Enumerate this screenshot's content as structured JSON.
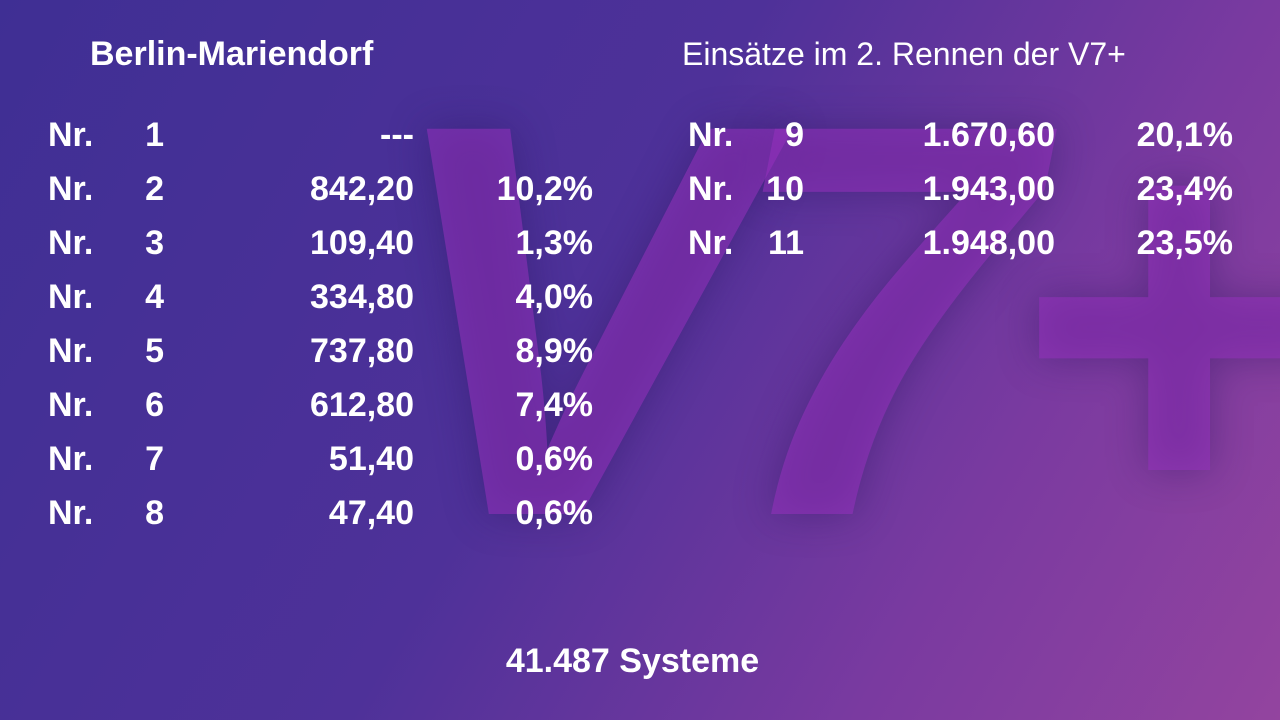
{
  "header": {
    "venue": "Berlin-Mariendorf",
    "title": "Einsätze im 2. Rennen der V7+"
  },
  "logo": "V7+",
  "left_rows": [
    {
      "prefix": "Nr.",
      "number": "1",
      "amount": "---"
    },
    {
      "prefix": "Nr.",
      "number": "2",
      "amount": "842,20",
      "share": "10,2%"
    },
    {
      "prefix": "Nr.",
      "number": "3",
      "amount": "109,40",
      "share": "1,3%"
    },
    {
      "prefix": "Nr.",
      "number": "4",
      "amount": "334,80",
      "share": "4,0%"
    },
    {
      "prefix": "Nr.",
      "number": "5",
      "amount": "737,80",
      "share": "8,9%"
    },
    {
      "prefix": "Nr.",
      "number": "6",
      "amount": "612,80",
      "share": "7,4%"
    },
    {
      "prefix": "Nr.",
      "number": "7",
      "amount": "51,40",
      "share": "0,6%"
    },
    {
      "prefix": "Nr.",
      "number": "8",
      "amount": "47,40",
      "share": "0,6%"
    }
  ],
  "right_rows": [
    {
      "prefix": "Nr.",
      "number": "9",
      "amount": "1.670,60",
      "share": "20,1%"
    },
    {
      "prefix": "Nr.",
      "number": "10",
      "amount": "1.943,00",
      "share": "23,4%"
    },
    {
      "prefix": "Nr.",
      "number": "11",
      "amount": "1.948,00",
      "share": "23,5%"
    }
  ],
  "footer": "41.487 Systeme"
}
